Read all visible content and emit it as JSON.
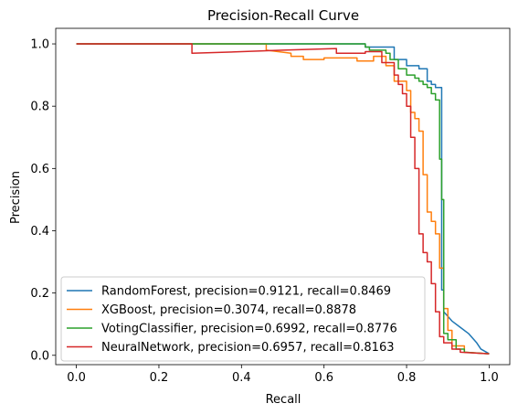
{
  "chart_data": {
    "type": "line",
    "title": "Precision-Recall Curve",
    "xlabel": "Recall",
    "ylabel": "Precision",
    "xlim": [
      -0.05,
      1.05
    ],
    "ylim": [
      -0.03,
      1.05
    ],
    "xticks": [
      0.0,
      0.2,
      0.4,
      0.6,
      0.8,
      1.0
    ],
    "xtick_labels": [
      "0.0",
      "0.2",
      "0.4",
      "0.6",
      "0.8",
      "1.0"
    ],
    "yticks": [
      0.0,
      0.2,
      0.4,
      0.6,
      0.8,
      1.0
    ],
    "ytick_labels": [
      "0.0",
      "0.2",
      "0.4",
      "0.6",
      "0.8",
      "1.0"
    ],
    "grid": false,
    "legend_position": "lower-left",
    "series": [
      {
        "name": "RandomForest, precision=0.9121, recall=0.8469",
        "color": "#1f77b4",
        "points": [
          [
            0.0,
            1.0
          ],
          [
            0.7,
            1.0
          ],
          [
            0.7,
            0.99
          ],
          [
            0.77,
            0.99
          ],
          [
            0.77,
            0.95
          ],
          [
            0.8,
            0.95
          ],
          [
            0.8,
            0.93
          ],
          [
            0.83,
            0.93
          ],
          [
            0.83,
            0.92
          ],
          [
            0.85,
            0.92
          ],
          [
            0.85,
            0.88
          ],
          [
            0.86,
            0.88
          ],
          [
            0.86,
            0.87
          ],
          [
            0.87,
            0.87
          ],
          [
            0.87,
            0.86
          ],
          [
            0.885,
            0.86
          ],
          [
            0.885,
            0.21
          ],
          [
            0.89,
            0.21
          ],
          [
            0.89,
            0.14
          ],
          [
            0.91,
            0.11
          ],
          [
            0.93,
            0.09
          ],
          [
            0.95,
            0.07
          ],
          [
            0.97,
            0.04
          ],
          [
            0.98,
            0.02
          ],
          [
            1.0,
            0.005
          ]
        ]
      },
      {
        "name": "XGBoost, precision=0.3074, recall=0.8878",
        "color": "#ff7f0e",
        "points": [
          [
            0.0,
            1.0
          ],
          [
            0.46,
            1.0
          ],
          [
            0.46,
            0.98
          ],
          [
            0.52,
            0.97
          ],
          [
            0.52,
            0.96
          ],
          [
            0.55,
            0.96
          ],
          [
            0.55,
            0.95
          ],
          [
            0.6,
            0.95
          ],
          [
            0.6,
            0.955
          ],
          [
            0.68,
            0.955
          ],
          [
            0.68,
            0.945
          ],
          [
            0.72,
            0.945
          ],
          [
            0.72,
            0.96
          ],
          [
            0.75,
            0.96
          ],
          [
            0.75,
            0.93
          ],
          [
            0.77,
            0.93
          ],
          [
            0.77,
            0.88
          ],
          [
            0.8,
            0.88
          ],
          [
            0.8,
            0.85
          ],
          [
            0.81,
            0.85
          ],
          [
            0.81,
            0.78
          ],
          [
            0.82,
            0.78
          ],
          [
            0.82,
            0.76
          ],
          [
            0.83,
            0.76
          ],
          [
            0.83,
            0.72
          ],
          [
            0.84,
            0.72
          ],
          [
            0.84,
            0.58
          ],
          [
            0.85,
            0.58
          ],
          [
            0.85,
            0.46
          ],
          [
            0.86,
            0.46
          ],
          [
            0.86,
            0.43
          ],
          [
            0.87,
            0.43
          ],
          [
            0.87,
            0.39
          ],
          [
            0.88,
            0.39
          ],
          [
            0.88,
            0.28
          ],
          [
            0.89,
            0.28
          ],
          [
            0.89,
            0.15
          ],
          [
            0.9,
            0.15
          ],
          [
            0.9,
            0.08
          ],
          [
            0.91,
            0.08
          ],
          [
            0.91,
            0.03
          ],
          [
            0.94,
            0.03
          ],
          [
            0.94,
            0.01
          ],
          [
            1.0,
            0.005
          ]
        ]
      },
      {
        "name": "VotingClassifier, precision=0.6992, recall=0.8776",
        "color": "#2ca02c",
        "points": [
          [
            0.0,
            1.0
          ],
          [
            0.7,
            1.0
          ],
          [
            0.7,
            0.99
          ],
          [
            0.71,
            0.99
          ],
          [
            0.71,
            0.98
          ],
          [
            0.75,
            0.98
          ],
          [
            0.75,
            0.97
          ],
          [
            0.76,
            0.97
          ],
          [
            0.76,
            0.95
          ],
          [
            0.78,
            0.95
          ],
          [
            0.78,
            0.92
          ],
          [
            0.8,
            0.92
          ],
          [
            0.8,
            0.9
          ],
          [
            0.82,
            0.9
          ],
          [
            0.82,
            0.89
          ],
          [
            0.83,
            0.89
          ],
          [
            0.83,
            0.88
          ],
          [
            0.84,
            0.88
          ],
          [
            0.84,
            0.87
          ],
          [
            0.85,
            0.87
          ],
          [
            0.85,
            0.86
          ],
          [
            0.86,
            0.86
          ],
          [
            0.86,
            0.84
          ],
          [
            0.87,
            0.84
          ],
          [
            0.87,
            0.82
          ],
          [
            0.88,
            0.82
          ],
          [
            0.88,
            0.63
          ],
          [
            0.885,
            0.63
          ],
          [
            0.885,
            0.5
          ],
          [
            0.89,
            0.5
          ],
          [
            0.89,
            0.07
          ],
          [
            0.9,
            0.07
          ],
          [
            0.9,
            0.05
          ],
          [
            0.92,
            0.05
          ],
          [
            0.92,
            0.02
          ],
          [
            0.94,
            0.02
          ],
          [
            0.94,
            0.01
          ],
          [
            1.0,
            0.005
          ]
        ]
      },
      {
        "name": "NeuralNetwork, precision=0.6957, recall=0.8163",
        "color": "#d62728",
        "points": [
          [
            0.0,
            1.0
          ],
          [
            0.28,
            1.0
          ],
          [
            0.28,
            0.97
          ],
          [
            0.4,
            0.975
          ],
          [
            0.5,
            0.98
          ],
          [
            0.63,
            0.985
          ],
          [
            0.63,
            0.97
          ],
          [
            0.7,
            0.97
          ],
          [
            0.7,
            0.975
          ],
          [
            0.74,
            0.975
          ],
          [
            0.74,
            0.94
          ],
          [
            0.77,
            0.94
          ],
          [
            0.77,
            0.9
          ],
          [
            0.78,
            0.9
          ],
          [
            0.78,
            0.87
          ],
          [
            0.79,
            0.87
          ],
          [
            0.79,
            0.84
          ],
          [
            0.8,
            0.84
          ],
          [
            0.8,
            0.8
          ],
          [
            0.81,
            0.8
          ],
          [
            0.81,
            0.7
          ],
          [
            0.82,
            0.7
          ],
          [
            0.82,
            0.6
          ],
          [
            0.83,
            0.6
          ],
          [
            0.83,
            0.39
          ],
          [
            0.84,
            0.39
          ],
          [
            0.84,
            0.33
          ],
          [
            0.85,
            0.33
          ],
          [
            0.85,
            0.3
          ],
          [
            0.86,
            0.3
          ],
          [
            0.86,
            0.23
          ],
          [
            0.87,
            0.23
          ],
          [
            0.87,
            0.14
          ],
          [
            0.88,
            0.14
          ],
          [
            0.88,
            0.06
          ],
          [
            0.89,
            0.06
          ],
          [
            0.89,
            0.04
          ],
          [
            0.91,
            0.04
          ],
          [
            0.91,
            0.02
          ],
          [
            0.93,
            0.02
          ],
          [
            0.93,
            0.01
          ],
          [
            1.0,
            0.005
          ]
        ]
      }
    ]
  }
}
